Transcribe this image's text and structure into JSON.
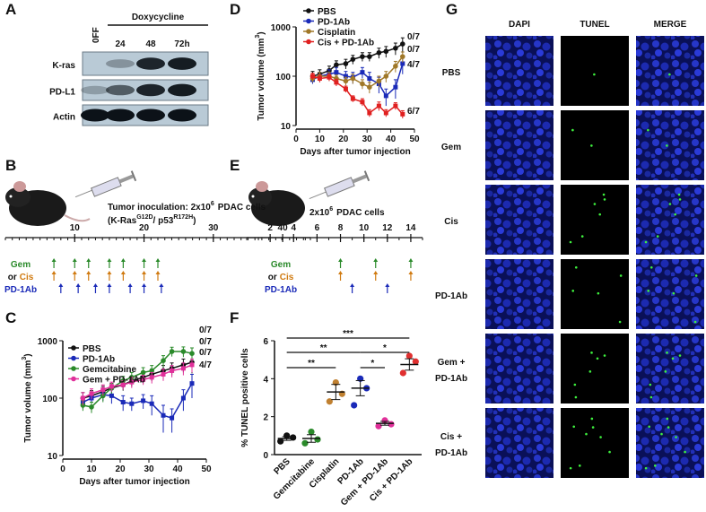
{
  "chart_data": [
    {
      "type": "line",
      "panel": "C",
      "log_y": true,
      "ylabel": [
        "Tumor volume (mm",
        "3",
        ")"
      ],
      "xlabel": "Days after tumor injection",
      "x": [
        7,
        10,
        14,
        17,
        21,
        24,
        28,
        31,
        35,
        38,
        42,
        45
      ],
      "xlim": [
        0,
        50
      ],
      "xticks": [
        0,
        10,
        20,
        30,
        40,
        50
      ],
      "ylim": [
        10,
        1000
      ],
      "yticks": [
        10,
        100,
        1000
      ],
      "series": [
        {
          "name": "PBS",
          "color": "#111111",
          "values": [
            100,
            110,
            130,
            150,
            170,
            200,
            230,
            260,
            300,
            330,
            380,
            420
          ],
          "errors": [
            25,
            25,
            30,
            30,
            35,
            40,
            50,
            60,
            70,
            80,
            100,
            150
          ],
          "end_label": "0/7"
        },
        {
          "name": "PD-1Ab",
          "color": "#1a2ab8",
          "values": [
            85,
            100,
            115,
            110,
            85,
            80,
            90,
            80,
            50,
            45,
            100,
            180
          ],
          "errors": [
            20,
            25,
            25,
            30,
            25,
            20,
            25,
            30,
            25,
            20,
            40,
            80
          ],
          "end_label": "4/7"
        },
        {
          "name": "Gemcitabine",
          "color": "#2a8a2a",
          "values": [
            75,
            70,
            110,
            150,
            200,
            230,
            280,
            300,
            450,
            650,
            650,
            600
          ],
          "errors": [
            15,
            15,
            25,
            30,
            40,
            50,
            60,
            70,
            100,
            120,
            130,
            150
          ],
          "end_label": "0/7"
        },
        {
          "name": "Gem + PD-1Ab",
          "color": "#e0309a",
          "values": [
            100,
            120,
            140,
            160,
            170,
            190,
            210,
            230,
            260,
            300,
            330,
            380
          ],
          "errors": [
            25,
            25,
            30,
            30,
            30,
            40,
            40,
            50,
            60,
            70,
            80,
            100
          ],
          "end_label": "0/7"
        }
      ]
    },
    {
      "type": "line",
      "panel": "D",
      "log_y": true,
      "ylabel": [
        "Tumor volume (mm",
        "3",
        ")"
      ],
      "xlabel": "Days after tumor injection",
      "x": [
        7,
        10,
        14,
        17,
        21,
        24,
        28,
        31,
        35,
        38,
        42,
        45
      ],
      "xlim": [
        0,
        50
      ],
      "xticks": [
        0,
        10,
        20,
        30,
        40,
        50
      ],
      "ylim": [
        10,
        1000
      ],
      "yticks": [
        10,
        100,
        1000
      ],
      "series": [
        {
          "name": "PBS",
          "color": "#111111",
          "values": [
            100,
            110,
            130,
            170,
            180,
            220,
            250,
            250,
            300,
            320,
            370,
            450
          ],
          "errors": [
            25,
            25,
            30,
            35,
            40,
            45,
            50,
            50,
            70,
            80,
            100,
            150
          ],
          "end_label": "0/7"
        },
        {
          "name": "PD-1Ab",
          "color": "#1a2ab8",
          "values": [
            85,
            100,
            110,
            120,
            100,
            95,
            120,
            90,
            70,
            40,
            60,
            180
          ],
          "errors": [
            15,
            20,
            25,
            30,
            25,
            25,
            30,
            30,
            25,
            15,
            25,
            70
          ],
          "end_label": "4/7"
        },
        {
          "name": "Cisplatin",
          "color": "#a07828",
          "values": [
            90,
            100,
            100,
            90,
            80,
            90,
            70,
            60,
            80,
            100,
            160,
            250
          ],
          "errors": [
            15,
            20,
            20,
            15,
            15,
            20,
            15,
            15,
            20,
            25,
            40,
            60
          ],
          "end_label": "0/7"
        },
        {
          "name": "Cis + PD-1Ab",
          "color": "#e02020",
          "values": [
            100,
            90,
            95,
            75,
            55,
            35,
            30,
            18,
            25,
            18,
            25,
            17
          ],
          "errors": [
            15,
            15,
            15,
            12,
            8,
            5,
            5,
            3,
            5,
            3,
            4,
            3
          ],
          "end_label": "6/7"
        }
      ]
    },
    {
      "type": "dot",
      "panel": "F",
      "ylabel": "% TUNEL positive cells",
      "categories": [
        "PBS",
        "Gemcitabine",
        "Cisplatin",
        "PD-1Ab",
        "Gem + PD-1Ab",
        "Cis + PD-1Ab"
      ],
      "colors": [
        "#111111",
        "#2a8a2a",
        "#c08030",
        "#1a2ab8",
        "#e0309a",
        "#e03030"
      ],
      "points": [
        [
          0.7,
          1.0,
          0.9
        ],
        [
          0.6,
          1.2,
          0.8
        ],
        [
          2.8,
          3.8,
          3.2
        ],
        [
          2.6,
          4.0,
          3.5
        ],
        [
          1.5,
          1.8,
          1.6
        ],
        [
          4.3,
          5.2,
          4.9
        ]
      ],
      "means": [
        0.85,
        0.85,
        3.3,
        3.5,
        1.65,
        4.75
      ],
      "errors": [
        0.1,
        0.2,
        0.4,
        0.4,
        0.1,
        0.3
      ],
      "ylim": [
        0,
        6
      ],
      "yticks": [
        0,
        2,
        4,
        6
      ],
      "significance": [
        {
          "pair": [
            "PBS",
            "Cis + PD-1Ab"
          ],
          "label": "***"
        },
        {
          "pair": [
            "PBS",
            "PD-1Ab"
          ],
          "label": "**"
        },
        {
          "pair": [
            "PD-1Ab",
            "Cis + PD-1Ab"
          ],
          "label": "*"
        },
        {
          "pair": [
            "PBS",
            "Cisplatin"
          ],
          "label": "**"
        },
        {
          "pair": [
            "PD-1Ab",
            "Gem + PD-1Ab"
          ],
          "label": "*"
        }
      ]
    }
  ],
  "blot": {
    "panel": "A",
    "treatment": "Doxycycline",
    "lanes": [
      "0FF",
      "24",
      "48",
      "72h"
    ],
    "rows": [
      "K-ras",
      "PD-L1",
      "Actin"
    ]
  },
  "timeline_b": {
    "panel": "B",
    "text": [
      "Tumor inoculation: 2x10",
      "6",
      "PDAC cells"
    ],
    "genotype": [
      "(K-Ras",
      "G12D",
      "/ p53",
      "R172H",
      ")"
    ],
    "xlim": [
      0,
      44
    ],
    "ticks": [
      10,
      20,
      30,
      40
    ],
    "rows": [
      {
        "parts": [
          "Gem"
        ],
        "colors": [
          "#2a8a2a"
        ],
        "arrow_color": "#2a8a2a",
        "days": [
          7,
          10,
          12,
          15,
          17,
          20,
          22
        ]
      },
      {
        "parts": [
          "or",
          "Cis"
        ],
        "colors": [
          "#111111",
          "#d07a10"
        ],
        "arrow_color": "#d07a10",
        "days": [
          7,
          10,
          12,
          15,
          17,
          20,
          22
        ]
      },
      {
        "parts": [
          "PD-1Ab"
        ],
        "colors": [
          "#1a2ab8"
        ],
        "arrow_color": "#1a2ab8",
        "days": [
          8,
          10.5,
          13,
          15,
          18,
          20,
          22.5
        ]
      }
    ]
  },
  "timeline_e": {
    "panel": "E",
    "text": [
      "2x10",
      "6",
      "PDAC cells"
    ],
    "xlim": [
      0,
      15
    ],
    "ticks": [
      2,
      4,
      6,
      8,
      10,
      12,
      14
    ],
    "rows": [
      {
        "parts": [
          "Gem"
        ],
        "colors": [
          "#2a8a2a"
        ],
        "arrow_color": "#2a8a2a",
        "days": [
          8,
          11,
          14
        ]
      },
      {
        "parts": [
          "or",
          "Cis"
        ],
        "colors": [
          "#111111",
          "#d07a10"
        ],
        "arrow_color": "#d07a10",
        "days": [
          8,
          11,
          14
        ]
      },
      {
        "parts": [
          "PD-1Ab"
        ],
        "colors": [
          "#1a2ab8"
        ],
        "arrow_color": "#1a2ab8",
        "days": [
          9,
          12
        ]
      }
    ]
  },
  "images": {
    "panel": "G",
    "columns": [
      "DAPI",
      "TUNEL",
      "MERGE"
    ],
    "rows": [
      [
        "PBS"
      ],
      [
        "Gem"
      ],
      [
        "Cis"
      ],
      [
        "PD-1Ab"
      ],
      [
        "Gem +",
        "PD-1Ab"
      ],
      [
        "Cis +",
        "PD-1Ab"
      ]
    ]
  }
}
